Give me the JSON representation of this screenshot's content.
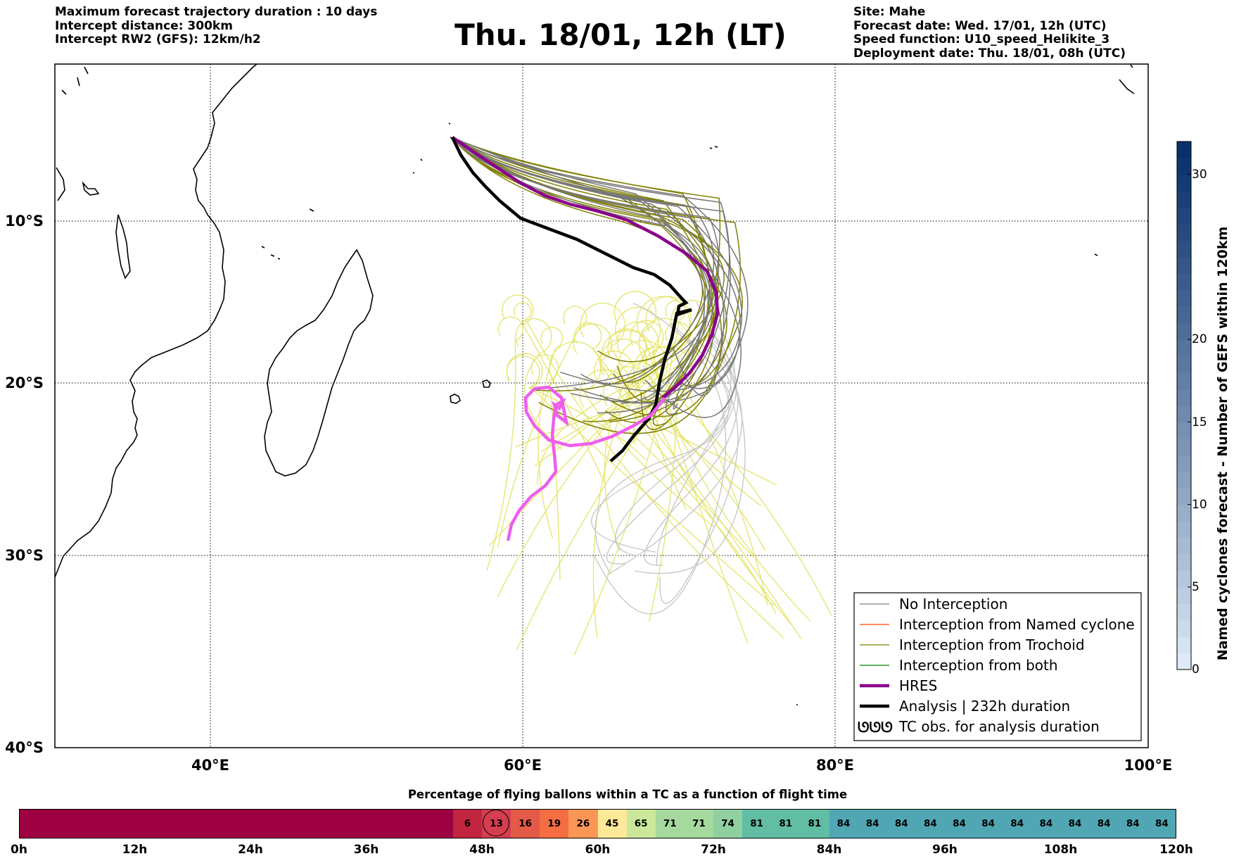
{
  "header": {
    "left_lines": [
      "Maximum forecast trajectory duration : 10 days",
      "Intercept distance: 300km",
      "Intercept RW2 (GFS):  12km/h2"
    ],
    "title": "Thu. 18/01, 12h (LT)",
    "right_lines": [
      "Site: Mahe",
      "Forecast date: Wed. 17/01, 12h (UTC)",
      "Speed function: U10_speed_Helikite_3",
      "Deployment date: Thu. 18/01, 08h (UTC)"
    ]
  },
  "map": {
    "lat_labels": [
      "10°S",
      "20°S",
      "30°S",
      "40°S"
    ],
    "lon_labels": [
      "40°E",
      "60°E",
      "80°E",
      "100°E"
    ],
    "lon_range": [
      30,
      100
    ],
    "lat_range": [
      -40,
      -0.2
    ],
    "gridlines": true
  },
  "legend": {
    "items": [
      {
        "label": "No Interception",
        "color": "#808080",
        "style": "thin"
      },
      {
        "label": "Interception from Named cyclone",
        "color": "#ff4500",
        "style": "thin"
      },
      {
        "label": "Interception from Trochoid",
        "color": "#808000",
        "style": "thin"
      },
      {
        "label": "Interception from both",
        "color": "#008000",
        "style": "thin"
      },
      {
        "label": "HRES",
        "color": "#8b008b",
        "style": "thick"
      },
      {
        "label": "Analysis | 232h duration",
        "color": "#000000",
        "style": "thick"
      },
      {
        "label": "TC obs. for analysis duration",
        "color": "#000000",
        "style": "symbol",
        "symbol": "ᘎᘎᘎ"
      }
    ],
    "placement": "lower-right"
  },
  "right_colorbar": {
    "title": "Named cyclones forecast - Number of GEFS within 120km",
    "ticks": [
      "0",
      "5",
      "10",
      "15",
      "20",
      "30"
    ],
    "range": [
      0,
      32
    ],
    "colormap": "Blues"
  },
  "time_bar": {
    "title": "Percentage of flying ballons within a TC as a function of flight time",
    "tick_labels": [
      "0h",
      "12h",
      "24h",
      "36h",
      "48h",
      "60h",
      "72h",
      "84h",
      "96h",
      "108h",
      "120h"
    ],
    "segments": [
      {
        "value": "",
        "hours": 45,
        "color": "#9e0142"
      },
      {
        "value": "6",
        "hours": 3,
        "color": "#c2253f"
      },
      {
        "value": "13",
        "hours": 3,
        "color": "#d53e4f",
        "circled": true
      },
      {
        "value": "16",
        "hours": 3,
        "color": "#e45a49"
      },
      {
        "value": "19",
        "hours": 3,
        "color": "#f46d43"
      },
      {
        "value": "26",
        "hours": 3,
        "color": "#fa9656"
      },
      {
        "value": "45",
        "hours": 3,
        "color": "#fee999"
      },
      {
        "value": "65",
        "hours": 3,
        "color": "#cbe89a"
      },
      {
        "value": "71",
        "hours": 3,
        "color": "#a6d99e"
      },
      {
        "value": "71",
        "hours": 3,
        "color": "#a6d99e"
      },
      {
        "value": "74",
        "hours": 3,
        "color": "#90d0a0"
      },
      {
        "value": "81",
        "hours": 3,
        "color": "#62bda5"
      },
      {
        "value": "81",
        "hours": 3,
        "color": "#62bda5"
      },
      {
        "value": "81",
        "hours": 3,
        "color": "#62bda5"
      },
      {
        "value": "84",
        "hours": 3,
        "color": "#50a7b3"
      },
      {
        "value": "84",
        "hours": 3,
        "color": "#50a7b3"
      },
      {
        "value": "84",
        "hours": 3,
        "color": "#50a7b3"
      },
      {
        "value": "84",
        "hours": 3,
        "color": "#50a7b3"
      },
      {
        "value": "84",
        "hours": 3,
        "color": "#50a7b3"
      },
      {
        "value": "84",
        "hours": 3,
        "color": "#50a7b3"
      },
      {
        "value": "84",
        "hours": 3,
        "color": "#50a7b3"
      },
      {
        "value": "84",
        "hours": 3,
        "color": "#50a7b3"
      },
      {
        "value": "84",
        "hours": 3,
        "color": "#50a7b3"
      },
      {
        "value": "84",
        "hours": 3,
        "color": "#50a7b3"
      },
      {
        "value": "84",
        "hours": 3,
        "color": "#50a7b3"
      },
      {
        "value": "84",
        "hours": 3,
        "color": "#50a7b3"
      }
    ]
  }
}
